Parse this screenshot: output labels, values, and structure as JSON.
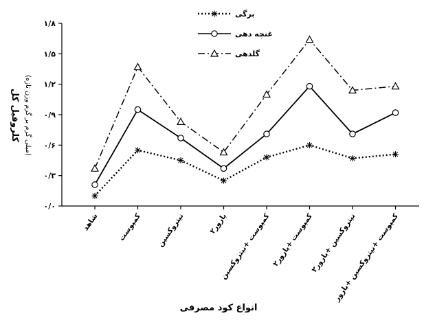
{
  "chart_data": {
    "type": "line",
    "categories": [
      "شاهد",
      "کمپوست",
      "نیتروکسین",
      "بارور۲",
      "کمپوست +نیتروکسین",
      "کمپوست +بارور۲",
      "نیتروکسین +بارور۲",
      "کمپوست +نیتروکسین +بارور"
    ],
    "series": [
      {
        "name": "برگی",
        "values": [
          0.1,
          0.55,
          0.45,
          0.25,
          0.48,
          0.6,
          0.47,
          0.51
        ],
        "marker": "asterisk",
        "dash": "dotted"
      },
      {
        "name": "غنچه دهی",
        "values": [
          0.21,
          0.95,
          0.67,
          0.37,
          0.71,
          1.18,
          0.71,
          0.92
        ],
        "marker": "circle",
        "dash": "solid"
      },
      {
        "name": "گلدهی",
        "values": [
          0.37,
          1.37,
          0.83,
          0.53,
          1.1,
          1.64,
          1.14,
          1.18
        ],
        "marker": "triangle",
        "dash": "dashdot"
      }
    ],
    "yticks": [
      {
        "value": 0.0,
        "label": "۰/۰"
      },
      {
        "value": 0.3,
        "label": "۰/۳"
      },
      {
        "value": 0.6,
        "label": "۰/۶"
      },
      {
        "value": 0.9,
        "label": "۰/۹"
      },
      {
        "value": 1.2,
        "label": "۱/۲"
      },
      {
        "value": 1.5,
        "label": "۱/۵"
      },
      {
        "value": 1.8,
        "label": "۱/۸"
      }
    ],
    "ylim": [
      0,
      1.8
    ],
    "ylabel": "کلروفیل کل",
    "ylabel_unit": "(میلی گرم بر گرم وزن تازه)",
    "xlabel": "انواع کود مصرفی",
    "legend_position": "top-center",
    "grid": false
  }
}
